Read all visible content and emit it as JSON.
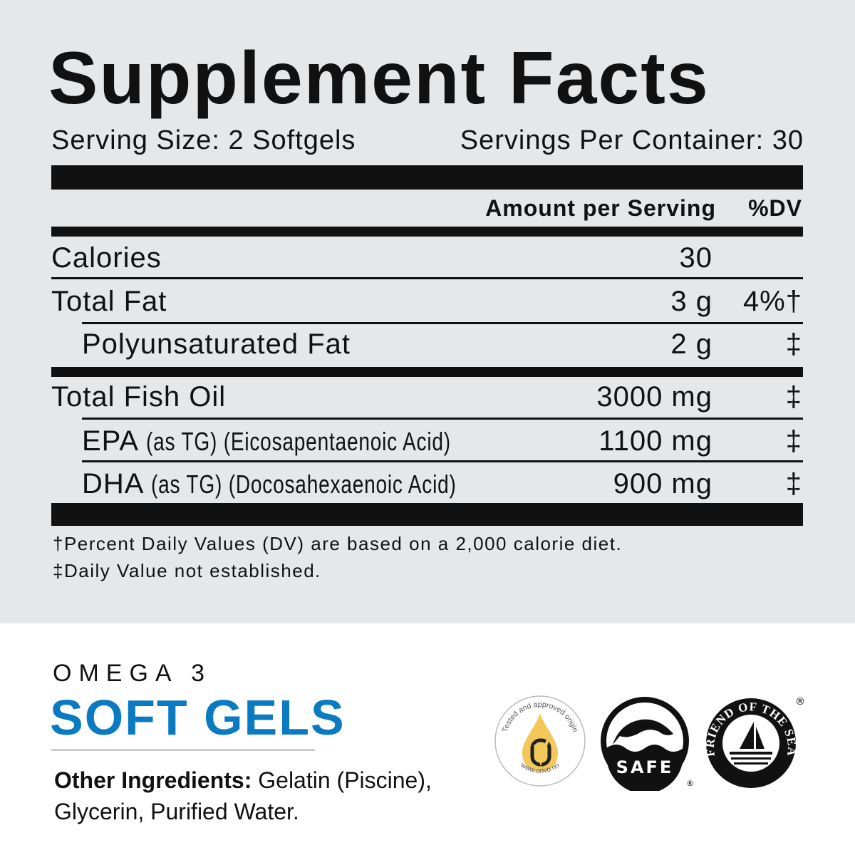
{
  "label": {
    "title": "Supplement Facts",
    "serving_size": "Serving Size: 2 Softgels",
    "servings_per_container": "Servings Per Container: 30",
    "header_amount": "Amount per Serving",
    "header_dv": "%DV",
    "rows": [
      {
        "name": "Calories",
        "amount": "30",
        "dv": ""
      },
      {
        "name": "Total Fat",
        "amount": "3 g",
        "dv": "4%†"
      },
      {
        "name": "Polyunsaturated Fat",
        "amount": "2 g",
        "dv": "‡"
      },
      {
        "name": "Total Fish Oil",
        "amount": "3000 mg",
        "dv": "‡"
      },
      {
        "name": "EPA",
        "name_detail": "(as TG) (Eicosapentaenoic Acid)",
        "amount": "1100 mg",
        "dv": "‡"
      },
      {
        "name": "DHA",
        "name_detail": "(as TG) (Docosahexaenoic Acid)",
        "amount": "900 mg",
        "dv": "‡"
      }
    ],
    "footnote_1": "†Percent Daily Values (DV) are based on a 2,000 calorie diet.",
    "footnote_2": "‡Daily Value not established."
  },
  "product": {
    "line": "OMEGA 3",
    "name": "SOFT GELS",
    "ingredients_label": "Other Ingredients:",
    "ingredients_text": " Gelatin (Piscine), Glycerin, Purified Water."
  },
  "badges": [
    {
      "icon": "orivo-origin-badge",
      "text_top": "Tested and approved origin",
      "text_bottom": "www.orivo.no"
    },
    {
      "icon": "dolphin-safe-badge",
      "text": "SAFE"
    },
    {
      "icon": "friend-of-the-sea-badge",
      "text": "FRIEND OF THE SEA"
    }
  ],
  "colors": {
    "panel": "#e6e7e9",
    "accent_blue": "#0a7bc2",
    "orivo_yellow": "#f2c85b"
  }
}
